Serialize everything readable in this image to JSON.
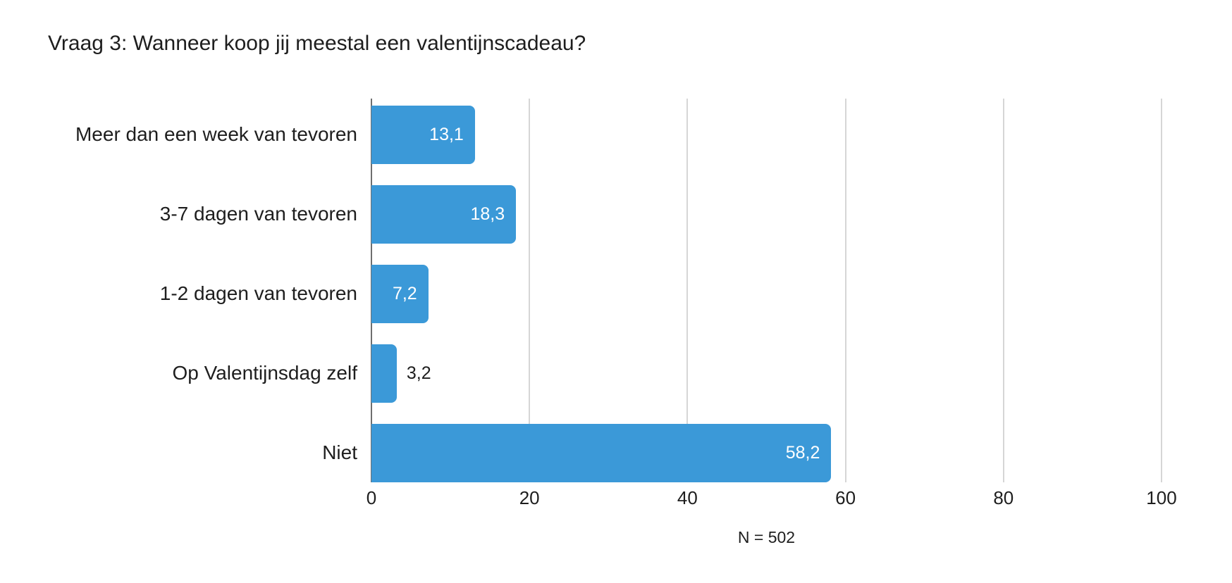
{
  "title": "Vraag 3: Wanneer koop jij meestal een valentijnscadeau?",
  "footer": "N = 502",
  "colors": {
    "bar": "#3b99d8",
    "gridline": "#d6d6d6",
    "axis_line": "#6f6f6f",
    "text": "#1e1e1e",
    "value_inside_text": "#ffffff"
  },
  "chart_data": {
    "type": "bar",
    "orientation": "horizontal",
    "title": "Vraag 3: Wanneer koop jij meestal een valentijnscadeau?",
    "categories": [
      "Meer dan een week van tevoren",
      "3-7 dagen van tevoren",
      "1-2 dagen van tevoren",
      "Op Valentijnsdag zelf",
      "Niet"
    ],
    "values": [
      13.1,
      18.3,
      7.2,
      3.2,
      58.2
    ],
    "value_labels": [
      "13,1",
      "18,3",
      "7,2",
      "3,2",
      "58,2"
    ],
    "label_inside": [
      true,
      true,
      true,
      false,
      true
    ],
    "xlim": [
      0,
      100
    ],
    "x_ticks": [
      0,
      20,
      40,
      60,
      80,
      100
    ],
    "x_tick_labels": [
      "0",
      "20",
      "40",
      "60",
      "80",
      "100"
    ],
    "grid": "vertical",
    "legend": "none",
    "note": "N = 502"
  }
}
